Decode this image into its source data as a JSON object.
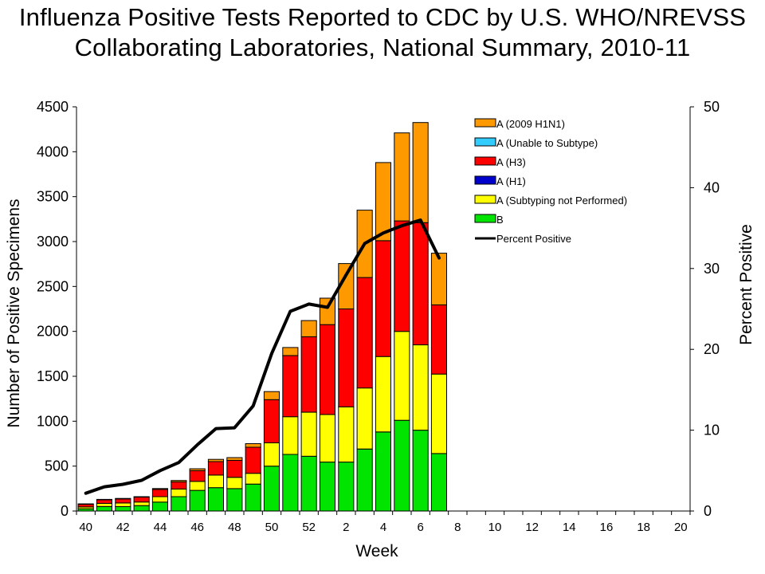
{
  "chart_data": {
    "type": "bar",
    "subtype": "stacked-bar-with-line",
    "title_line1": "Influenza Positive Tests Reported to CDC by U.S. WHO/NREVSS",
    "title_line2": "Collaborating Laboratories, National Summary, 2010-11",
    "xlabel": "Week",
    "ylabel": "Number of Positive Specimens",
    "y2label": "Percent Positive",
    "ylim": [
      0,
      4500
    ],
    "y2lim": [
      0,
      50
    ],
    "yticks": [
      0,
      500,
      1000,
      1500,
      2000,
      2500,
      3000,
      3500,
      4000,
      4500
    ],
    "y2ticks": [
      0,
      10,
      20,
      30,
      40,
      50
    ],
    "weeks": [
      "40",
      "41",
      "42",
      "43",
      "44",
      "45",
      "46",
      "47",
      "48",
      "49",
      "50",
      "51",
      "52",
      "1",
      "2",
      "3",
      "4",
      "5",
      "6",
      "7",
      "8",
      "9",
      "10",
      "11",
      "12",
      "13",
      "14",
      "15",
      "16",
      "17",
      "18",
      "19",
      "20"
    ],
    "tick_labels": [
      "40",
      "42",
      "44",
      "46",
      "48",
      "50",
      "52",
      "2",
      "4",
      "6",
      "8",
      "10",
      "12",
      "14",
      "16",
      "18",
      "20"
    ],
    "series": [
      {
        "name": "B",
        "color": "#00e400",
        "values": [
          25,
          50,
          50,
          60,
          100,
          160,
          230,
          260,
          250,
          300,
          500,
          630,
          610,
          545,
          545,
          690,
          880,
          1010,
          900,
          640
        ]
      },
      {
        "name": "A (Subtyping not Performed)",
        "color": "#ffff00",
        "values": [
          20,
          35,
          40,
          40,
          60,
          85,
          100,
          140,
          125,
          120,
          260,
          420,
          490,
          530,
          615,
          680,
          840,
          990,
          950,
          885
        ]
      },
      {
        "name": "A (H1)",
        "color": "#0000cc",
        "values": [
          0,
          0,
          0,
          0,
          0,
          0,
          0,
          0,
          0,
          0,
          0,
          0,
          0,
          0,
          0,
          0,
          0,
          0,
          0,
          0
        ]
      },
      {
        "name": "A (H3)",
        "color": "#ff0000",
        "values": [
          30,
          40,
          45,
          55,
          80,
          80,
          120,
          150,
          190,
          290,
          480,
          680,
          840,
          1000,
          1090,
          1230,
          1290,
          1230,
          1360,
          770
        ]
      },
      {
        "name": "A (Unable to Subtype)",
        "color": "#33ccff",
        "values": [
          0,
          0,
          0,
          0,
          0,
          0,
          0,
          0,
          0,
          0,
          0,
          0,
          0,
          0,
          0,
          0,
          0,
          0,
          0,
          0
        ]
      },
      {
        "name": "A (2009 H1N1)",
        "color": "#ff9900",
        "values": [
          5,
          5,
          5,
          5,
          10,
          15,
          20,
          25,
          30,
          40,
          90,
          90,
          180,
          295,
          505,
          750,
          870,
          980,
          1115,
          575
        ]
      }
    ],
    "line": {
      "name": "Percent Positive",
      "color": "#000000",
      "values": [
        2.2,
        3.0,
        3.3,
        3.8,
        5.0,
        6.0,
        8.2,
        10.2,
        10.3,
        13.0,
        19.5,
        24.7,
        25.6,
        25.2,
        29.2,
        33.1,
        34.4,
        35.3,
        36.0,
        31.3
      ]
    },
    "legend": [
      "A (2009 H1N1)",
      "A (Unable to Subtype)",
      "A (H3)",
      "A (H1)",
      "A (Subtyping not Performed)",
      "B",
      "Percent Positive"
    ],
    "legend_position": "top-right"
  }
}
